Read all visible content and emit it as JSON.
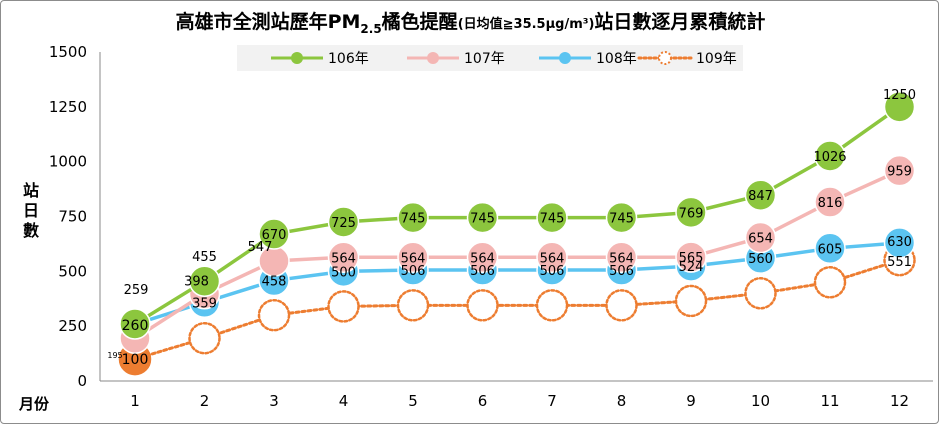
{
  "title": {
    "part1": "高雄市全測站歷年PM",
    "sub": "2.5",
    "part2": "橘色提醒",
    "note": "(日均值≧35.5μg/m³)",
    "part3": "站日數逐月累積統計"
  },
  "ylabel": "站日數",
  "xlabel": "月份",
  "chart_data": {
    "type": "line",
    "categories": [
      "1",
      "2",
      "3",
      "4",
      "5",
      "6",
      "7",
      "8",
      "9",
      "10",
      "11",
      "12"
    ],
    "ylim": [
      0,
      1500
    ],
    "yticks": [
      "0",
      "250",
      "500",
      "750",
      "1000",
      "1250",
      "1500"
    ],
    "grid": false,
    "legend_position": "top",
    "series": [
      {
        "name": "106年",
        "color": "#8cc63e",
        "style": "solid",
        "values": [
          260,
          455,
          670,
          725,
          745,
          745,
          745,
          745,
          769,
          847,
          1026,
          1250
        ],
        "labels": [
          "",
          "455",
          "670",
          "725",
          "745",
          "745",
          "745",
          "745",
          "769",
          "847",
          "1026",
          "1250"
        ]
      },
      {
        "name": "107年",
        "color": "#f4b6b4",
        "style": "solid",
        "values": [
          195,
          398,
          547,
          564,
          564,
          564,
          564,
          564,
          565,
          654,
          816,
          959
        ],
        "labels": [
          "195",
          "398",
          "547",
          "564",
          "564",
          "564",
          "564",
          "564",
          "565",
          "654",
          "816",
          "959"
        ]
      },
      {
        "name": "108年",
        "color": "#5bc4f1",
        "style": "solid",
        "values": [
          259,
          359,
          458,
          500,
          506,
          506,
          506,
          506,
          524,
          560,
          605,
          630
        ],
        "labels": [
          "259",
          "359",
          "458",
          "500",
          "506",
          "506",
          "506",
          "506",
          "524",
          "560",
          "605",
          "630"
        ]
      },
      {
        "name": "109年",
        "color": "#ed7d31",
        "style": "dotted",
        "values": [
          100,
          195,
          300,
          340,
          345,
          345,
          345,
          345,
          365,
          400,
          450,
          551
        ],
        "labels": [
          "100",
          "",
          "",
          "",
          "",
          "",
          "",
          "",
          "",
          "",
          "",
          "551"
        ]
      }
    ],
    "extra_labels": [
      {
        "series": "106年",
        "index": 0,
        "text": "260"
      }
    ]
  }
}
